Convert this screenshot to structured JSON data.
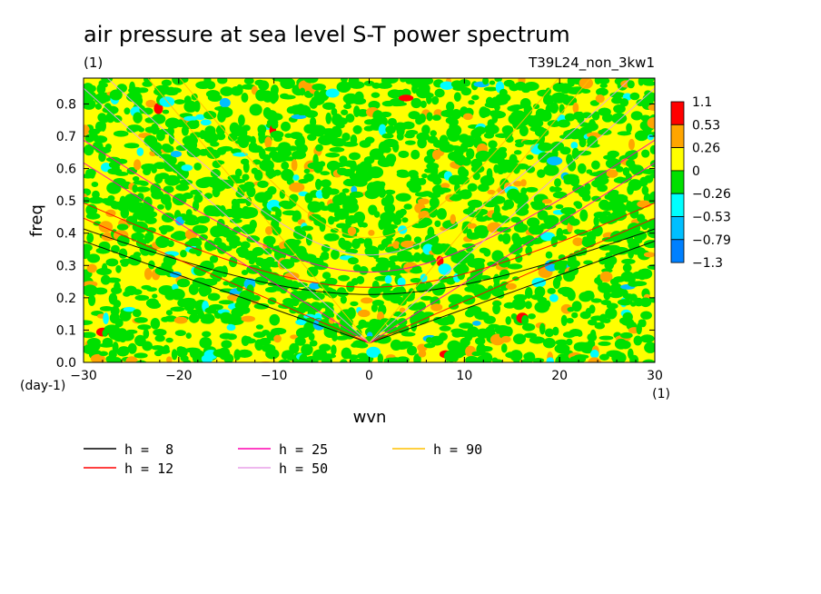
{
  "chart_data": {
    "type": "heatmap",
    "title": "air pressure at sea level S-T power spectrum",
    "title_units": "(1)",
    "experiment": "T39L24_non_3kw1",
    "xlabel": "wvn",
    "xunits": "(1)",
    "ylabel": "freq",
    "yunits": "(day-1)",
    "xlim": [
      -30,
      30
    ],
    "ylim": [
      0.0,
      0.88
    ],
    "xticks": [
      -30,
      -20,
      -10,
      0,
      10,
      20,
      30
    ],
    "xtick_labels": [
      "−30",
      "−20",
      "−10",
      "0",
      "10",
      "20",
      "30"
    ],
    "yticks": [
      0.0,
      0.1,
      0.2,
      0.3,
      0.4,
      0.5,
      0.6,
      0.7,
      0.8
    ],
    "ytick_labels": [
      "0.0",
      "0.1",
      "0.2",
      "0.3",
      "0.4",
      "0.5",
      "0.6",
      "0.7",
      "0.8"
    ],
    "colorbar": {
      "levels": [
        "1.1",
        "0.53",
        "0.26",
        "0",
        "−0.26",
        "−0.53",
        "−0.79",
        "−1.3"
      ],
      "colors": [
        "#ff0000",
        "#ffa500",
        "#ffff00",
        "#00e000",
        "#00ffff",
        "#00bfff",
        "#0080ff"
      ]
    },
    "field_fractions": {
      "yellow": 0.55,
      "green": 0.38,
      "orange": 0.04,
      "cyan": 0.02,
      "blue": 0.005,
      "red": 0.005
    },
    "dispersion_curves": [
      {
        "label": "h =  8",
        "h": 8,
        "color": "#000000"
      },
      {
        "label": "h = 12",
        "h": 12,
        "color": "#ff0000"
      },
      {
        "label": "h = 25",
        "h": 25,
        "color": "#ff00b0"
      },
      {
        "label": "h = 50",
        "h": 50,
        "color": "#e8a0e8"
      },
      {
        "label": "h = 90",
        "h": 90,
        "color": "#ffc000"
      }
    ]
  }
}
